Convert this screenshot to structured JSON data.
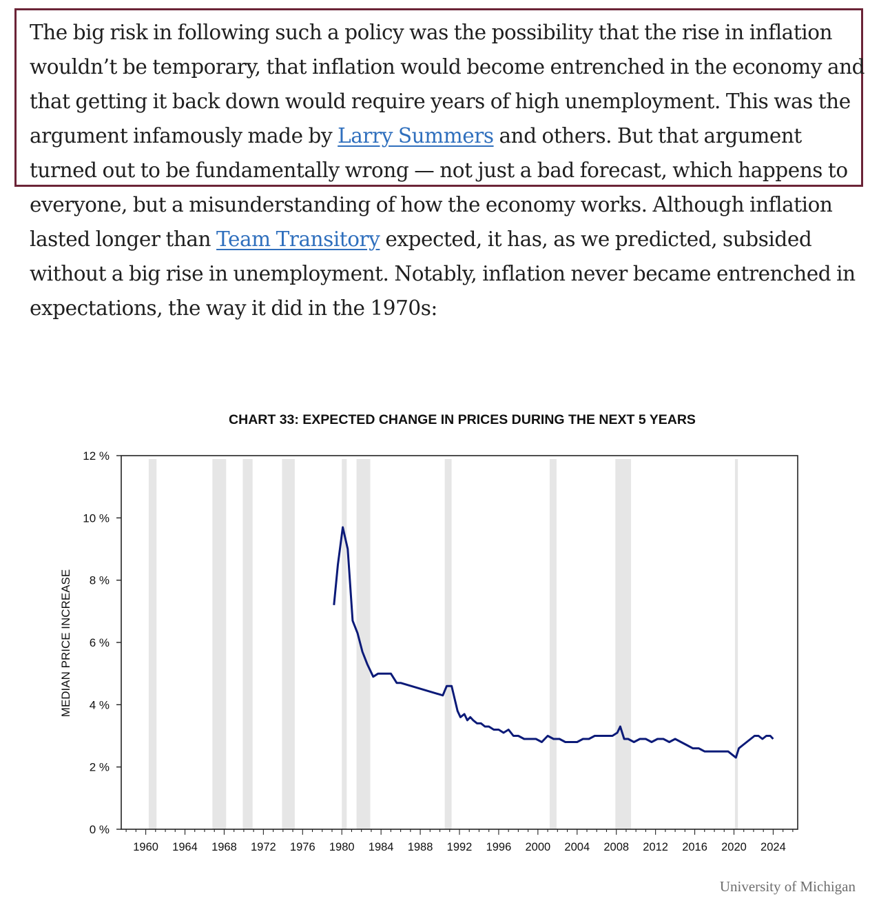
{
  "article": {
    "p1_a": "The big risk in following such a policy was the possibility that the rise in inflation wouldn’t be temporary, that inflation would become entrenched in the economy and that getting it back down would require years of high unemployment. This was the argument infamously made by ",
    "link_summers": "Larry Summers",
    "p1_b": " and others. But that argument turned out to be fundamentally wrong — not just a bad forecast, which happens to everyone, but a misunderstanding of how the economy works. Although inflation lasted longer than ",
    "link_transitory": "Team Transitory",
    "p1_c": " expected, it has, as we predicted, subsided without a big rise in unemployment. Notably, inflation never became entrenched in expectations, the way it did in the 1970s:",
    "highlight_color": "#6b2437",
    "link_color": "#2f6fbd"
  },
  "credit": "University of Michigan",
  "chart_data": {
    "type": "line",
    "title": "CHART 33: EXPECTED CHANGE IN PRICES DURING THE NEXT 5 YEARS",
    "ylabel": "MEDIAN PRICE INCREASE",
    "xlabel": "",
    "xlim": [
      1957.5,
      2026.5
    ],
    "ylim": [
      0,
      12
    ],
    "yticks": [
      0,
      2,
      4,
      6,
      8,
      10,
      12
    ],
    "ytick_labels": [
      "0 %",
      "2 %",
      "4 %",
      "6 %",
      "8 %",
      "10 %",
      "12 %"
    ],
    "xticks": [
      1960,
      1964,
      1968,
      1972,
      1976,
      1980,
      1984,
      1988,
      1992,
      1996,
      2000,
      2004,
      2008,
      2012,
      2016,
      2020,
      2024
    ],
    "xtick_labels": [
      "1960",
      "1964",
      "1968",
      "1972",
      "1976",
      "1980",
      "1984",
      "1988",
      "1992",
      "1996",
      "2000",
      "2004",
      "2008",
      "2012",
      "2016",
      "2020",
      "2024"
    ],
    "grid": false,
    "recessions": [
      [
        1960.3,
        1961.1
      ],
      [
        1969.9,
        1970.9
      ],
      [
        1973.9,
        1975.2
      ],
      [
        1980.0,
        1980.5
      ],
      [
        1981.5,
        1982.9
      ],
      [
        1990.5,
        1991.2
      ],
      [
        2001.2,
        2001.9
      ],
      [
        2007.9,
        2009.5
      ],
      [
        2020.1,
        2020.4
      ],
      [
        1966.8,
        1968.2
      ]
    ],
    "recession_color": "#e6e6e6",
    "line_color": "#0b1a78",
    "series": [
      {
        "x": [
          1979.2,
          1979.6,
          1980.1,
          1980.6,
          1981.1,
          1981.6,
          1982.1,
          1982.6,
          1983.2,
          1983.7,
          1984.2,
          1985.0,
          1985.6,
          1986.0,
          1990.3,
          1990.7,
          1991.2,
          1991.5,
          1991.8,
          1992.1,
          1992.5,
          1992.8,
          1993.1,
          1993.4,
          1993.8,
          1994.2,
          1994.6,
          1995.0,
          1995.5,
          1996.0,
          1996.5,
          1997.0,
          1997.5,
          1998.0,
          1998.6,
          1999.2,
          1999.8,
          2000.4,
          2001.0,
          2001.6,
          2002.2,
          2002.8,
          2003.4,
          2004.0,
          2004.6,
          2005.2,
          2005.8,
          2006.4,
          2007.0,
          2007.6,
          2008.1,
          2008.4,
          2008.8,
          2009.2,
          2009.8,
          2010.4,
          2011.0,
          2011.6,
          2012.2,
          2012.8,
          2013.4,
          2014.0,
          2014.6,
          2015.2,
          2015.8,
          2016.4,
          2017.0,
          2017.6,
          2018.2,
          2018.8,
          2019.4,
          2019.8,
          2020.2,
          2020.5,
          2020.9,
          2021.3,
          2021.7,
          2022.1,
          2022.5,
          2022.9,
          2023.3,
          2023.7,
          2024.0
        ],
        "y": [
          7.2,
          8.5,
          9.7,
          9.0,
          6.7,
          6.3,
          5.7,
          5.3,
          4.9,
          5.0,
          5.0,
          5.0,
          4.7,
          4.7,
          4.3,
          4.6,
          4.6,
          4.2,
          3.8,
          3.6,
          3.7,
          3.5,
          3.6,
          3.5,
          3.4,
          3.4,
          3.3,
          3.3,
          3.2,
          3.2,
          3.1,
          3.2,
          3.0,
          3.0,
          2.9,
          2.9,
          2.9,
          2.8,
          3.0,
          2.9,
          2.9,
          2.8,
          2.8,
          2.8,
          2.9,
          2.9,
          3.0,
          3.0,
          3.0,
          3.0,
          3.1,
          3.3,
          2.9,
          2.9,
          2.8,
          2.9,
          2.9,
          2.8,
          2.9,
          2.9,
          2.8,
          2.9,
          2.8,
          2.7,
          2.6,
          2.6,
          2.5,
          2.5,
          2.5,
          2.5,
          2.5,
          2.4,
          2.3,
          2.6,
          2.7,
          2.8,
          2.9,
          3.0,
          3.0,
          2.9,
          3.0,
          3.0,
          2.9
        ]
      }
    ]
  }
}
